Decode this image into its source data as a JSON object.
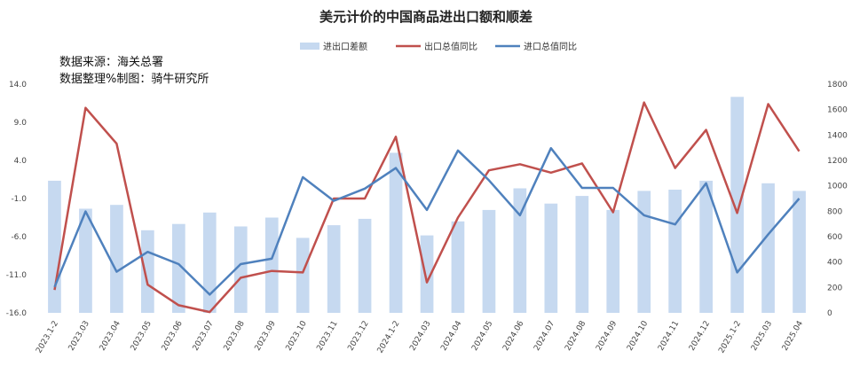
{
  "chart_data": {
    "type": "bar-line-combo",
    "title": "美元计价的中国商品进出口额和顺差",
    "source_note": "数据来源：海关总署",
    "maker_note": "数据整理%制图：骑牛研究所",
    "categories": [
      "2023.1-2",
      "2023.03",
      "2023.04",
      "2023.05",
      "2023.06",
      "2023.07",
      "2023.08",
      "2023.09",
      "2023.10",
      "2023.11",
      "2023.12",
      "2024.1-2",
      "2024.03",
      "2024.04",
      "2024.05",
      "2024.06",
      "2024.07",
      "2024.08",
      "2024.09",
      "2024.10",
      "2024.11",
      "2024.12",
      "2025.1-2",
      "2025.03",
      "2025.04"
    ],
    "left_axis": {
      "min": -16,
      "max": 14,
      "ticks": [
        "14.0",
        "9.0",
        "4.0",
        "-1.0",
        "-6.0",
        "-11.0",
        "-16.0"
      ]
    },
    "right_axis": {
      "min": 0,
      "max": 1800,
      "ticks": [
        "1800",
        "1600",
        "1400",
        "1200",
        "1000",
        "800",
        "600",
        "400",
        "200",
        "0"
      ]
    },
    "series": [
      {
        "name": "进出口差额",
        "kind": "bar",
        "axis": "right",
        "color": "#c6d9f0",
        "values": [
          1040,
          820,
          850,
          650,
          700,
          790,
          680,
          750,
          590,
          690,
          740,
          1260,
          610,
          720,
          810,
          980,
          860,
          920,
          810,
          960,
          970,
          1040,
          1700,
          1020,
          960
        ]
      },
      {
        "name": "出口总值同比",
        "kind": "line",
        "axis": "left",
        "color": "#c0504d",
        "values": [
          -13.0,
          10.9,
          6.2,
          -12.3,
          -15.0,
          -15.9,
          -11.4,
          -10.5,
          -10.7,
          -1.0,
          -1.0,
          7.1,
          -12.0,
          -3.5,
          2.7,
          3.5,
          2.4,
          3.6,
          -2.8,
          11.6,
          3.0,
          8.0,
          -2.9,
          11.4,
          5.2
        ]
      },
      {
        "name": "进口总值同比",
        "kind": "line",
        "axis": "left",
        "color": "#4f81bd",
        "values": [
          -12.6,
          -2.7,
          -10.6,
          -8.0,
          -9.6,
          -13.6,
          -9.6,
          -8.9,
          1.8,
          -1.3,
          0.3,
          3.0,
          -2.5,
          5.3,
          1.4,
          -3.2,
          5.6,
          0.4,
          0.4,
          -3.2,
          -4.4,
          1.0,
          -10.7,
          -5.7,
          -1.0
        ]
      }
    ]
  }
}
